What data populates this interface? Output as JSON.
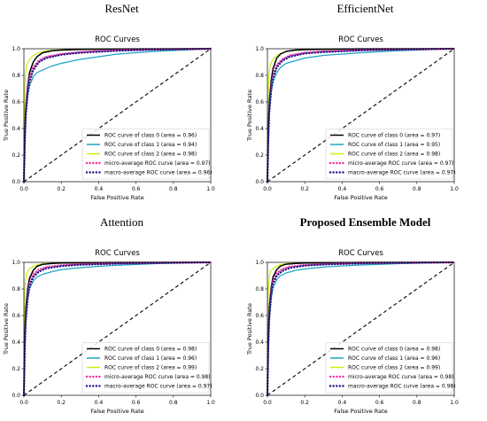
{
  "colors": {
    "class0": "#000000",
    "class1": "#1aa3c4",
    "class2": "#c7f20c",
    "micro": "#f52d9a",
    "macro": "#1a1a8c",
    "chance": "#000000"
  },
  "panels": [
    {
      "model": "ResNet",
      "bold": false
    },
    {
      "model": "EfficientNet",
      "bold": false
    },
    {
      "model": "Attention",
      "bold": false
    },
    {
      "model": "Proposed Ensemble Model",
      "bold": true
    }
  ],
  "chart_data": [
    {
      "type": "line",
      "title": "ROC Curves",
      "xlabel": "False Positive Rate",
      "ylabel": "True Positive Rate",
      "xlim": [
        0,
        1
      ],
      "ylim": [
        0,
        1
      ],
      "ticks": [
        0.0,
        0.2,
        0.4,
        0.6,
        0.8,
        1.0
      ],
      "grid": false,
      "legend_position": "lower-right",
      "series": [
        {
          "name": "ROC curve of class 0 (area = 0.96)",
          "style": "solid",
          "color": "class0",
          "x": [
            0,
            0.005,
            0.01,
            0.02,
            0.03,
            0.05,
            0.07,
            0.1,
            0.15,
            0.2,
            0.3,
            0.5,
            0.7,
            1.0
          ],
          "y": [
            0,
            0.35,
            0.55,
            0.72,
            0.82,
            0.9,
            0.94,
            0.97,
            0.985,
            0.99,
            0.995,
            0.998,
            0.999,
            1.0
          ]
        },
        {
          "name": "ROC curve of class 1 (area = 0.94)",
          "style": "solid",
          "color": "class1",
          "x": [
            0,
            0.005,
            0.01,
            0.02,
            0.03,
            0.05,
            0.07,
            0.1,
            0.15,
            0.2,
            0.3,
            0.4,
            0.5,
            0.7,
            0.85,
            1.0
          ],
          "y": [
            0,
            0.3,
            0.5,
            0.65,
            0.72,
            0.79,
            0.82,
            0.84,
            0.87,
            0.89,
            0.92,
            0.94,
            0.96,
            0.98,
            0.99,
            1.0
          ]
        },
        {
          "name": "ROC curve of class 2 (area = 0.98)",
          "style": "solid",
          "color": "class2",
          "x": [
            0,
            0.003,
            0.008,
            0.015,
            0.03,
            0.05,
            0.08,
            0.12,
            0.2,
            0.4,
            1.0
          ],
          "y": [
            0,
            0.6,
            0.8,
            0.88,
            0.92,
            0.95,
            0.97,
            0.985,
            0.993,
            0.998,
            1.0
          ]
        },
        {
          "name": "micro-average ROC curve (area = 0.97)",
          "style": "dotted",
          "color": "micro",
          "x": [
            0,
            0.005,
            0.01,
            0.02,
            0.03,
            0.05,
            0.08,
            0.12,
            0.2,
            0.3,
            0.5,
            0.7,
            1.0
          ],
          "y": [
            0,
            0.35,
            0.55,
            0.7,
            0.78,
            0.86,
            0.91,
            0.94,
            0.96,
            0.975,
            0.99,
            0.995,
            1.0
          ]
        },
        {
          "name": "macro-average ROC curve (area = 0.96)",
          "style": "dotted",
          "color": "macro",
          "x": [
            0,
            0.005,
            0.01,
            0.02,
            0.03,
            0.05,
            0.08,
            0.12,
            0.2,
            0.3,
            0.5,
            0.7,
            1.0
          ],
          "y": [
            0,
            0.3,
            0.5,
            0.66,
            0.75,
            0.84,
            0.9,
            0.93,
            0.955,
            0.97,
            0.985,
            0.993,
            1.0
          ]
        }
      ]
    },
    {
      "type": "line",
      "title": "ROC Curves",
      "xlabel": "False Positive Rate",
      "ylabel": "True Positive Rate",
      "xlim": [
        0,
        1
      ],
      "ylim": [
        0,
        1
      ],
      "ticks": [
        0.0,
        0.2,
        0.4,
        0.6,
        0.8,
        1.0
      ],
      "grid": false,
      "legend_position": "lower-right",
      "series": [
        {
          "name": "ROC curve of class 0 (area = 0.97)",
          "style": "solid",
          "color": "class0",
          "x": [
            0,
            0.005,
            0.01,
            0.02,
            0.03,
            0.05,
            0.07,
            0.1,
            0.15,
            0.2,
            0.3,
            0.5,
            1.0
          ],
          "y": [
            0,
            0.4,
            0.6,
            0.76,
            0.85,
            0.93,
            0.96,
            0.98,
            0.99,
            0.993,
            0.996,
            0.999,
            1.0
          ]
        },
        {
          "name": "ROC curve of class 1 (area = 0.95)",
          "style": "solid",
          "color": "class1",
          "x": [
            0,
            0.005,
            0.01,
            0.02,
            0.03,
            0.05,
            0.07,
            0.1,
            0.15,
            0.2,
            0.3,
            0.4,
            0.5,
            0.7,
            1.0
          ],
          "y": [
            0,
            0.3,
            0.5,
            0.67,
            0.75,
            0.82,
            0.86,
            0.89,
            0.91,
            0.93,
            0.95,
            0.96,
            0.97,
            0.985,
            1.0
          ]
        },
        {
          "name": "ROC curve of class 2 (area = 0.98)",
          "style": "solid",
          "color": "class2",
          "x": [
            0,
            0.003,
            0.008,
            0.015,
            0.03,
            0.05,
            0.08,
            0.12,
            0.2,
            0.4,
            1.0
          ],
          "y": [
            0,
            0.6,
            0.8,
            0.88,
            0.92,
            0.95,
            0.97,
            0.985,
            0.993,
            0.998,
            1.0
          ]
        },
        {
          "name": "micro-average ROC curve (area = 0.97)",
          "style": "dotted",
          "color": "micro",
          "x": [
            0,
            0.005,
            0.01,
            0.02,
            0.03,
            0.05,
            0.08,
            0.12,
            0.2,
            0.3,
            0.5,
            0.7,
            1.0
          ],
          "y": [
            0,
            0.35,
            0.55,
            0.72,
            0.8,
            0.88,
            0.92,
            0.95,
            0.97,
            0.98,
            0.99,
            0.995,
            1.0
          ]
        },
        {
          "name": "macro-average ROC curve (area = 0.97)",
          "style": "dotted",
          "color": "macro",
          "x": [
            0,
            0.005,
            0.01,
            0.02,
            0.03,
            0.05,
            0.08,
            0.12,
            0.2,
            0.3,
            0.5,
            0.7,
            1.0
          ],
          "y": [
            0,
            0.32,
            0.52,
            0.69,
            0.78,
            0.86,
            0.91,
            0.94,
            0.965,
            0.975,
            0.988,
            0.994,
            1.0
          ]
        }
      ]
    },
    {
      "type": "line",
      "title": "ROC Curves",
      "xlabel": "False Positive Rate",
      "ylabel": "True Positive Rate",
      "xlim": [
        0,
        1
      ],
      "ylim": [
        0,
        1
      ],
      "ticks": [
        0.0,
        0.2,
        0.4,
        0.6,
        0.8,
        1.0
      ],
      "grid": false,
      "legend_position": "lower-right",
      "series": [
        {
          "name": "ROC curve of class 0 (area = 0.98)",
          "style": "solid",
          "color": "class0",
          "x": [
            0,
            0.005,
            0.01,
            0.02,
            0.03,
            0.05,
            0.07,
            0.1,
            0.15,
            0.2,
            0.3,
            0.5,
            1.0
          ],
          "y": [
            0,
            0.45,
            0.65,
            0.8,
            0.88,
            0.94,
            0.97,
            0.985,
            0.992,
            0.995,
            0.997,
            0.999,
            1.0
          ]
        },
        {
          "name": "ROC curve of class 1 (area = 0.96)",
          "style": "solid",
          "color": "class1",
          "x": [
            0,
            0.005,
            0.01,
            0.02,
            0.03,
            0.05,
            0.07,
            0.1,
            0.15,
            0.2,
            0.3,
            0.4,
            0.5,
            0.7,
            1.0
          ],
          "y": [
            0,
            0.35,
            0.55,
            0.72,
            0.8,
            0.86,
            0.89,
            0.91,
            0.93,
            0.945,
            0.96,
            0.97,
            0.978,
            0.99,
            1.0
          ]
        },
        {
          "name": "ROC curve of class 2 (area = 0.99)",
          "style": "solid",
          "color": "class2",
          "x": [
            0,
            0.003,
            0.008,
            0.015,
            0.03,
            0.05,
            0.08,
            0.12,
            0.2,
            0.4,
            1.0
          ],
          "y": [
            0,
            0.7,
            0.86,
            0.92,
            0.95,
            0.97,
            0.985,
            0.992,
            0.996,
            0.999,
            1.0
          ]
        },
        {
          "name": "micro-average ROC curve (area = 0.98)",
          "style": "dotted",
          "color": "micro",
          "x": [
            0,
            0.005,
            0.01,
            0.02,
            0.03,
            0.05,
            0.08,
            0.12,
            0.2,
            0.3,
            0.5,
            0.7,
            1.0
          ],
          "y": [
            0,
            0.4,
            0.6,
            0.76,
            0.84,
            0.91,
            0.945,
            0.965,
            0.978,
            0.986,
            0.993,
            0.997,
            1.0
          ]
        },
        {
          "name": "macro-average ROC curve (area = 0.97)",
          "style": "dotted",
          "color": "macro",
          "x": [
            0,
            0.005,
            0.01,
            0.02,
            0.03,
            0.05,
            0.08,
            0.12,
            0.2,
            0.3,
            0.5,
            0.7,
            1.0
          ],
          "y": [
            0,
            0.36,
            0.56,
            0.73,
            0.82,
            0.89,
            0.93,
            0.955,
            0.972,
            0.982,
            0.99,
            0.995,
            1.0
          ]
        }
      ]
    },
    {
      "type": "line",
      "title": "ROC Curves",
      "xlabel": "False Positive Rate",
      "ylabel": "True Positive Rate",
      "xlim": [
        0,
        1
      ],
      "ylim": [
        0,
        1
      ],
      "ticks": [
        0.0,
        0.2,
        0.4,
        0.6,
        0.8,
        1.0
      ],
      "grid": false,
      "legend_position": "lower-right",
      "series": [
        {
          "name": "ROC curve of class 0 (area = 0.98)",
          "style": "solid",
          "color": "class0",
          "x": [
            0,
            0.005,
            0.01,
            0.02,
            0.03,
            0.05,
            0.07,
            0.1,
            0.15,
            0.2,
            0.3,
            0.5,
            1.0
          ],
          "y": [
            0,
            0.45,
            0.66,
            0.81,
            0.89,
            0.945,
            0.972,
            0.986,
            0.992,
            0.995,
            0.997,
            0.999,
            1.0
          ]
        },
        {
          "name": "ROC curve of class 1 (area = 0.96)",
          "style": "solid",
          "color": "class1",
          "x": [
            0,
            0.005,
            0.01,
            0.02,
            0.03,
            0.05,
            0.07,
            0.1,
            0.15,
            0.2,
            0.3,
            0.4,
            0.5,
            0.7,
            1.0
          ],
          "y": [
            0,
            0.36,
            0.56,
            0.73,
            0.81,
            0.87,
            0.9,
            0.92,
            0.94,
            0.95,
            0.965,
            0.973,
            0.98,
            0.99,
            1.0
          ]
        },
        {
          "name": "ROC curve of class 2 (area = 0.99)",
          "style": "solid",
          "color": "class2",
          "x": [
            0,
            0.003,
            0.008,
            0.015,
            0.03,
            0.05,
            0.08,
            0.12,
            0.2,
            0.4,
            1.0
          ],
          "y": [
            0,
            0.72,
            0.87,
            0.93,
            0.955,
            0.972,
            0.986,
            0.993,
            0.997,
            0.999,
            1.0
          ]
        },
        {
          "name": "micro-average ROC curve (area = 0.98)",
          "style": "dotted",
          "color": "micro",
          "x": [
            0,
            0.005,
            0.01,
            0.02,
            0.03,
            0.05,
            0.08,
            0.12,
            0.2,
            0.3,
            0.5,
            0.7,
            1.0
          ],
          "y": [
            0,
            0.42,
            0.62,
            0.78,
            0.86,
            0.92,
            0.95,
            0.968,
            0.98,
            0.987,
            0.994,
            0.997,
            1.0
          ]
        },
        {
          "name": "macro-average ROC curve (area = 0.98)",
          "style": "dotted",
          "color": "macro",
          "x": [
            0,
            0.005,
            0.01,
            0.02,
            0.03,
            0.05,
            0.08,
            0.12,
            0.2,
            0.3,
            0.5,
            0.7,
            1.0
          ],
          "y": [
            0,
            0.38,
            0.58,
            0.75,
            0.84,
            0.9,
            0.935,
            0.958,
            0.975,
            0.984,
            0.992,
            0.996,
            1.0
          ]
        }
      ]
    }
  ]
}
